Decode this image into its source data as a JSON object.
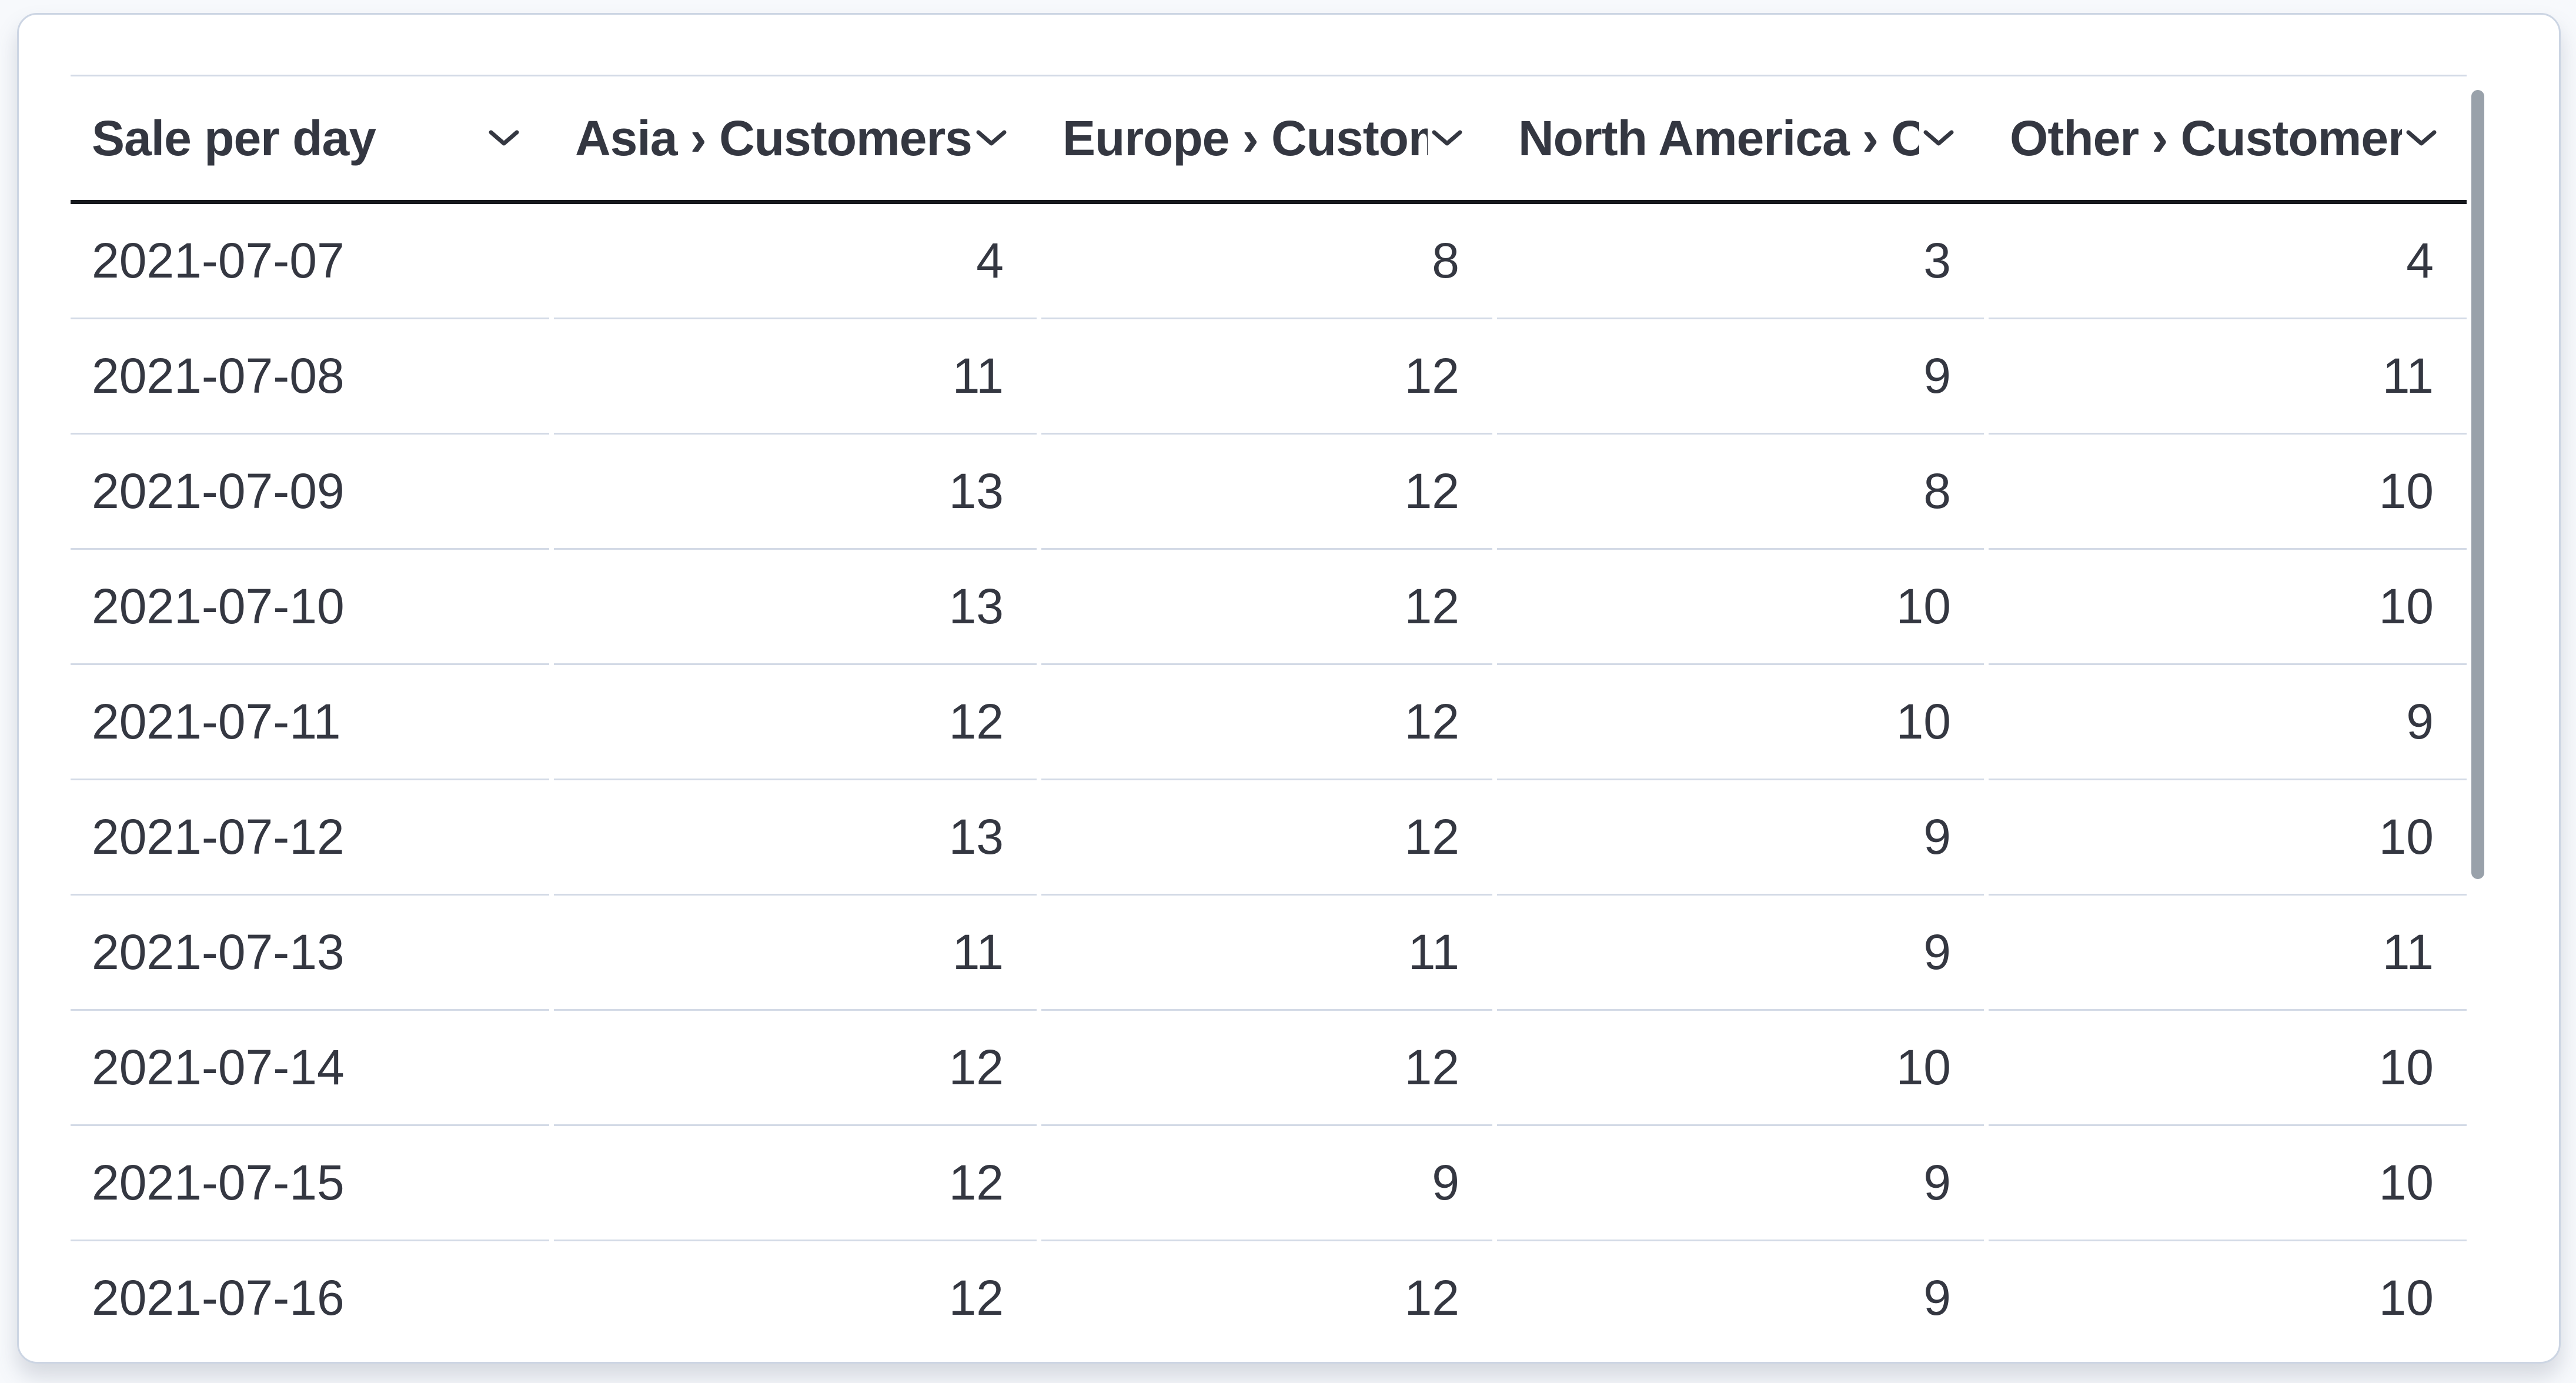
{
  "panel": {
    "type": "data-table-panel"
  },
  "table": {
    "columns": [
      {
        "id": "date",
        "label": "Sale per day",
        "align": "left"
      },
      {
        "id": "asia",
        "label": "Asia › Customers",
        "align": "right"
      },
      {
        "id": "europe",
        "label": "Europe › Customers",
        "align": "right"
      },
      {
        "id": "north-america",
        "label": "North America › Customers",
        "align": "right"
      },
      {
        "id": "other",
        "label": "Other › Customers",
        "align": "right"
      }
    ],
    "rows": [
      {
        "date": "2021-07-07",
        "asia": "4",
        "europe": "8",
        "north-america": "3",
        "other": "4"
      },
      {
        "date": "2021-07-08",
        "asia": "11",
        "europe": "12",
        "north-america": "9",
        "other": "11"
      },
      {
        "date": "2021-07-09",
        "asia": "13",
        "europe": "12",
        "north-america": "8",
        "other": "10"
      },
      {
        "date": "2021-07-10",
        "asia": "13",
        "europe": "12",
        "north-america": "10",
        "other": "10"
      },
      {
        "date": "2021-07-11",
        "asia": "12",
        "europe": "12",
        "north-america": "10",
        "other": "9"
      },
      {
        "date": "2021-07-12",
        "asia": "13",
        "europe": "12",
        "north-america": "9",
        "other": "10"
      },
      {
        "date": "2021-07-13",
        "asia": "11",
        "europe": "11",
        "north-america": "9",
        "other": "11"
      },
      {
        "date": "2021-07-14",
        "asia": "12",
        "europe": "12",
        "north-america": "10",
        "other": "10"
      },
      {
        "date": "2021-07-15",
        "asia": "12",
        "europe": "9",
        "north-america": "9",
        "other": "10"
      },
      {
        "date": "2021-07-16",
        "asia": "12",
        "europe": "12",
        "north-america": "9",
        "other": "10"
      }
    ]
  },
  "icons": {
    "column_sort": "chevron-down-icon"
  },
  "scrollbar": {
    "orientation": "vertical"
  },
  "colors": {
    "page_bg": "#f7f9fc",
    "panel_bg": "#ffffff",
    "panel_border": "#ccd5e3",
    "text": "#343741",
    "header_underline": "#16181d",
    "row_separator": "#d3dae6",
    "scrollbar_thumb": "#99a1aa"
  }
}
